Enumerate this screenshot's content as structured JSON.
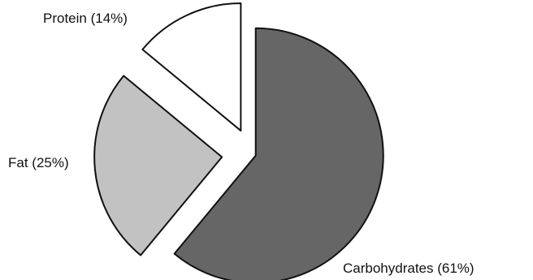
{
  "chart_data": {
    "type": "pie",
    "title": "",
    "slices": [
      {
        "name": "Carbohydrates",
        "value": 61,
        "label": "Carbohydrates (61%)",
        "color": "#666666",
        "exploded": true
      },
      {
        "name": "Fat",
        "value": 25,
        "label": "Fat (25%)",
        "color": "#c2c2c2",
        "exploded": true
      },
      {
        "name": "Protein",
        "value": 14,
        "label": "Protein (14%)",
        "color": "#ffffff",
        "exploded": true
      }
    ],
    "legend": "none"
  }
}
